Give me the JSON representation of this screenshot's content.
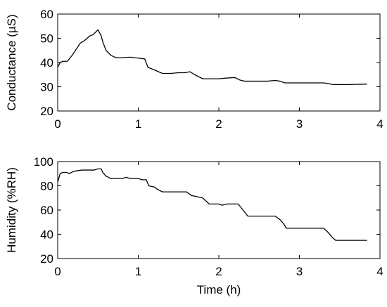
{
  "chart_data": [
    {
      "type": "line",
      "title": "",
      "xlabel": "",
      "ylabel": "Conductance (µS)",
      "xlim": [
        0,
        4
      ],
      "ylim": [
        20,
        60
      ],
      "xticks": [
        "0",
        "1",
        "2",
        "3",
        "4"
      ],
      "yticks": [
        "20",
        "30",
        "40",
        "50",
        "60"
      ],
      "grid": false,
      "legend": "none",
      "color": "#000000",
      "series": [
        {
          "x": [
            0,
            0.03,
            0.06,
            0.12,
            0.18,
            0.22,
            0.28,
            0.33,
            0.4,
            0.44,
            0.5,
            0.54,
            0.56,
            0.6,
            0.66,
            0.72,
            0.8,
            0.9,
            1.0,
            1.08,
            1.12,
            1.16,
            1.3,
            1.4,
            1.5,
            1.58,
            1.64,
            1.7,
            1.8,
            1.9,
            2.0,
            2.1,
            2.2,
            2.26,
            2.32,
            2.4,
            2.6,
            2.7,
            2.76,
            2.82,
            2.9,
            3.1,
            3.3,
            3.36,
            3.42,
            3.6,
            3.84
          ],
          "y": [
            38,
            40,
            40.5,
            40.5,
            43,
            45,
            48,
            49,
            51,
            51.5,
            53.5,
            51,
            48.5,
            45,
            43,
            42,
            42,
            42.2,
            41.8,
            41.5,
            38,
            37.5,
            35.5,
            35.5,
            35.8,
            35.8,
            36.2,
            35,
            33.3,
            33.3,
            33.3,
            33.6,
            33.8,
            32.8,
            32.3,
            32.3,
            32.3,
            32.6,
            32.3,
            31.6,
            31.6,
            31.6,
            31.6,
            31.3,
            30.9,
            30.9,
            31.1
          ]
        }
      ]
    },
    {
      "type": "line",
      "title": "",
      "xlabel": "Time (h)",
      "ylabel": "Humidity (%RH)",
      "xlim": [
        0,
        4
      ],
      "ylim": [
        20,
        100
      ],
      "xticks": [
        "0",
        "1",
        "2",
        "3",
        "4"
      ],
      "yticks": [
        "20",
        "40",
        "60",
        "80",
        "100"
      ],
      "grid": false,
      "legend": "none",
      "color": "#000000",
      "series": [
        {
          "x": [
            0,
            0.03,
            0.06,
            0.12,
            0.14,
            0.2,
            0.3,
            0.45,
            0.5,
            0.54,
            0.56,
            0.6,
            0.66,
            0.7,
            0.8,
            0.85,
            0.9,
            1.0,
            1.05,
            1.1,
            1.13,
            1.2,
            1.24,
            1.3,
            1.6,
            1.66,
            1.8,
            1.88,
            2.0,
            2.04,
            2.1,
            2.2,
            2.24,
            2.3,
            2.36,
            2.7,
            2.76,
            2.8,
            2.84,
            3.0,
            3.3,
            3.35,
            3.4,
            3.45,
            3.84
          ],
          "y": [
            83,
            90,
            91,
            91,
            90,
            92,
            93,
            93,
            94,
            94,
            91,
            88,
            86,
            86,
            86,
            87,
            86,
            86,
            85,
            85,
            80,
            79,
            77,
            75,
            75,
            72,
            70,
            65,
            65,
            64,
            65,
            65,
            65,
            60,
            55,
            55,
            52,
            49,
            45,
            45,
            45,
            42,
            38,
            35,
            35
          ]
        }
      ]
    }
  ]
}
